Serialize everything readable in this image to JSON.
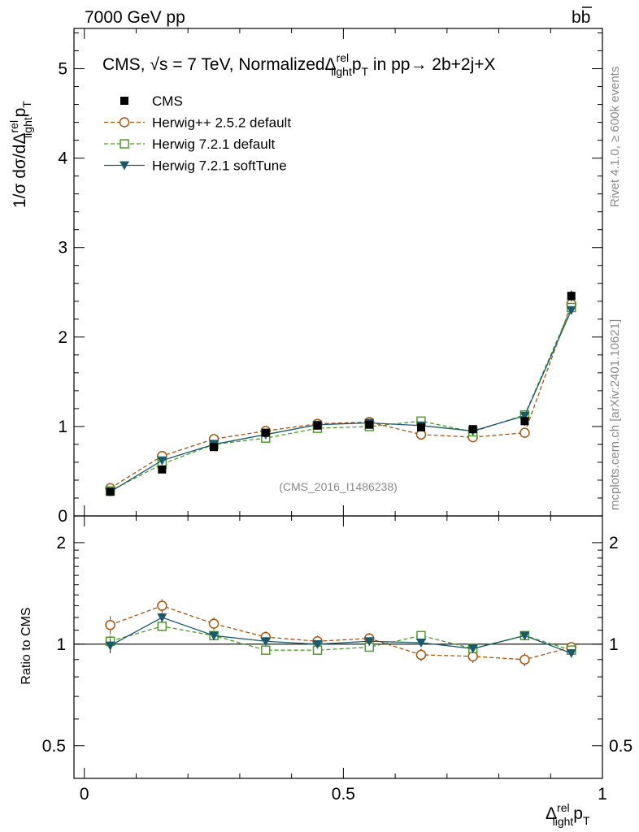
{
  "header": {
    "left": "7000 GeV pp",
    "right_base": "b",
    "right_bar": "b"
  },
  "side_labels": {
    "rivet": "Rivet 4.1.0, ≥ 600k events",
    "mcplots": "mcplots.cern.ch [arXiv:2401.10621]"
  },
  "watermark": "(CMS_2016_I1486238)",
  "title": {
    "prefix": "CMS, √s = 7 TeV, NormalizedΔ",
    "sup": "rel",
    "sub": "light",
    "p": "p",
    "psub": "T",
    "suffix": " in pp→  2b+2j+X"
  },
  "axis_labels": {
    "main_y_prefix": "1/σ dσ/dΔ",
    "main_y_sup": "rel",
    "main_y_sub": "light",
    "main_y_p": "p",
    "main_y_psub": "T",
    "ratio_y": "Ratio to CMS",
    "x_delta": "Δ",
    "x_sup": "rel",
    "x_sub": "light",
    "x_p": "p",
    "x_psub": "T"
  },
  "chart_data": [
    {
      "type": "scatter",
      "panel": "main",
      "xlim": [
        -0.02,
        1.0
      ],
      "ylim": [
        0,
        5.45
      ],
      "yticks": [
        0,
        1,
        2,
        3,
        4,
        5
      ],
      "ytick_labels": [
        "0",
        "1",
        "2",
        "3",
        "4",
        "5"
      ],
      "x": [
        0.05,
        0.15,
        0.25,
        0.35,
        0.45,
        0.55,
        0.65,
        0.75,
        0.85,
        0.94
      ],
      "series": [
        {
          "name": "CMS",
          "color": "#000000",
          "marker": "square-filled",
          "line": "none",
          "values": [
            0.27,
            0.52,
            0.77,
            0.93,
            1.01,
            1.02,
            0.99,
            0.97,
            1.06,
            2.46
          ],
          "errors": [
            0.02,
            0.03,
            0.04,
            0.04,
            0.04,
            0.04,
            0.04,
            0.04,
            0.05,
            0.06
          ]
        },
        {
          "name": "Herwig++ 2.5.2 default",
          "color": "#a8550d",
          "marker": "circle-open",
          "line": "dashed",
          "values": [
            0.31,
            0.67,
            0.86,
            0.95,
            1.03,
            1.05,
            0.91,
            0.88,
            0.93,
            2.37
          ],
          "errors": [
            0.01,
            0.02,
            0.02,
            0.02,
            0.02,
            0.02,
            0.02,
            0.02,
            0.02,
            0.03
          ]
        },
        {
          "name": "Herwig 7.2.1 default",
          "color": "#4a9f23",
          "marker": "square-open",
          "line": "dashed",
          "values": [
            0.28,
            0.58,
            0.8,
            0.87,
            0.98,
            1.0,
            1.06,
            0.94,
            1.13,
            2.33
          ],
          "errors": [
            0.01,
            0.02,
            0.02,
            0.02,
            0.02,
            0.02,
            0.02,
            0.02,
            0.02,
            0.03
          ]
        },
        {
          "name": "Herwig 7.2.1 softTune",
          "color": "#1a5a6e",
          "marker": "triangle-down-filled",
          "line": "solid",
          "values": [
            0.27,
            0.62,
            0.8,
            0.91,
            1.02,
            1.04,
            1.01,
            0.95,
            1.12,
            2.3
          ],
          "errors": [
            0.01,
            0.02,
            0.02,
            0.02,
            0.02,
            0.02,
            0.02,
            0.02,
            0.02,
            0.03
          ]
        }
      ]
    },
    {
      "type": "scatter",
      "panel": "ratio",
      "ylabel": "Ratio to CMS",
      "yscale": "log",
      "xlim": [
        -0.02,
        1.0
      ],
      "ylim": [
        0.4,
        2.4
      ],
      "yticks": [
        0.5,
        1,
        2
      ],
      "ytick_labels": [
        "0.5",
        "1",
        "2"
      ],
      "xticks": [
        0,
        0.5,
        1
      ],
      "xtick_labels": [
        "0",
        "0.5",
        "1"
      ],
      "reference_line": 1,
      "x": [
        0.05,
        0.15,
        0.25,
        0.35,
        0.45,
        0.55,
        0.65,
        0.75,
        0.85,
        0.94
      ],
      "series": [
        {
          "name": "Herwig++ 2.5.2 default",
          "color": "#a8550d",
          "marker": "circle-open",
          "line": "dashed",
          "values": [
            1.14,
            1.3,
            1.15,
            1.05,
            1.02,
            1.04,
            0.93,
            0.92,
            0.9,
            0.98
          ],
          "errors": [
            0.07,
            0.06,
            0.05,
            0.04,
            0.04,
            0.04,
            0.04,
            0.04,
            0.04,
            0.02
          ]
        },
        {
          "name": "Herwig 7.2.1 default",
          "color": "#4a9f23",
          "marker": "square-open",
          "line": "dashed",
          "values": [
            1.02,
            1.13,
            1.06,
            0.96,
            0.96,
            0.98,
            1.06,
            0.97,
            1.06,
            0.96
          ],
          "errors": [
            0.04,
            0.03,
            0.03,
            0.02,
            0.02,
            0.02,
            0.02,
            0.02,
            0.02,
            0.01
          ]
        },
        {
          "name": "Herwig 7.2.1 softTune",
          "color": "#1a5a6e",
          "marker": "triangle-down-filled",
          "line": "solid",
          "values": [
            0.99,
            1.2,
            1.06,
            1.02,
            1.0,
            1.02,
            1.01,
            0.97,
            1.06,
            0.94
          ],
          "errors": [
            0.05,
            0.04,
            0.03,
            0.02,
            0.02,
            0.02,
            0.02,
            0.02,
            0.02,
            0.01
          ]
        }
      ]
    }
  ]
}
